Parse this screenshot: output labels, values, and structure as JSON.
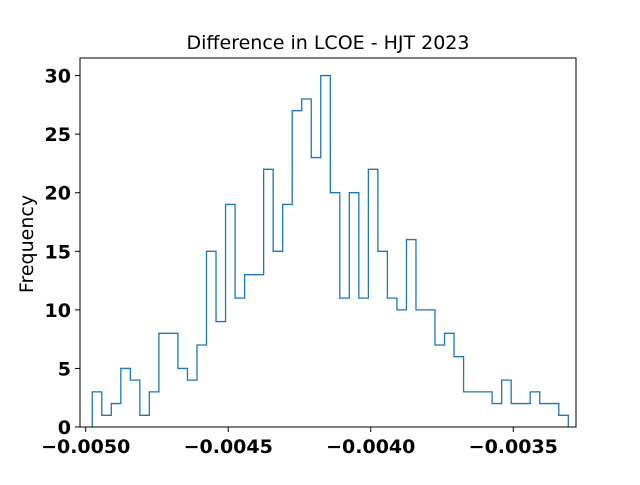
{
  "chart_data": {
    "type": "histogram",
    "title": "Difference in LCOE - HJT 2023",
    "xlabel": "",
    "ylabel": "Frequency",
    "xlim": [
      -0.00502,
      -0.00328
    ],
    "ylim": [
      0,
      31.5
    ],
    "x_ticks": [
      {
        "value": -0.005,
        "label": "−0.0050"
      },
      {
        "value": -0.0045,
        "label": "−0.0045"
      },
      {
        "value": -0.004,
        "label": "−0.0040"
      },
      {
        "value": -0.0035,
        "label": "−0.0035"
      }
    ],
    "y_ticks": [
      {
        "value": 0,
        "label": "0"
      },
      {
        "value": 5,
        "label": "5"
      },
      {
        "value": 10,
        "label": "10"
      },
      {
        "value": 15,
        "label": "15"
      },
      {
        "value": 20,
        "label": "20"
      },
      {
        "value": 25,
        "label": "25"
      },
      {
        "value": 30,
        "label": "30"
      }
    ],
    "bin_start": -0.004977,
    "bin_width": 3.34e-05,
    "counts": [
      3,
      1,
      2,
      5,
      4,
      1,
      3,
      8,
      8,
      5,
      4,
      7,
      15,
      9,
      19,
      11,
      13,
      13,
      22,
      15,
      19,
      27,
      28,
      23,
      30,
      20,
      11,
      20,
      11,
      22,
      15,
      11,
      10,
      16,
      10,
      10,
      7,
      8,
      6,
      3,
      3,
      3,
      2,
      4,
      2,
      2,
      3,
      2,
      2,
      1
    ],
    "grid": false,
    "legend": "none",
    "style": "step",
    "line_color": "#1f77b4"
  }
}
